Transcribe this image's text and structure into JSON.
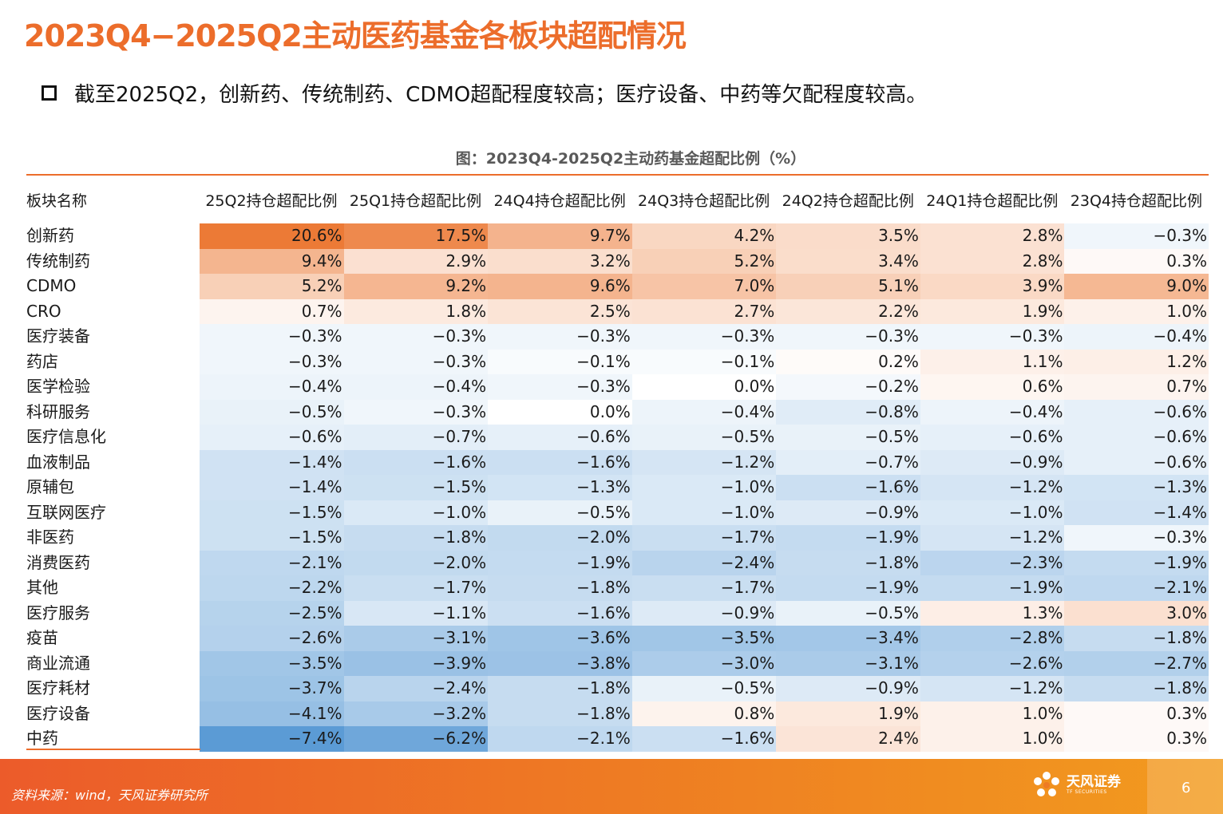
{
  "title": "2023Q4−2025Q2主动医药基金各板块超配情况",
  "bullet": "截至2025Q2，创新药、传统制药、CDMO超配程度较高；医疗设备、中药等欠配程度较高。",
  "table_caption": "图：2023Q4-2025Q2主动药基金超配比例（%）",
  "table": {
    "name_header": "板块名称",
    "headers": [
      "25Q2持仓超配比例",
      "25Q1持仓超配比例",
      "24Q4持仓超配比例",
      "24Q3持仓超配比例",
      "24Q2持仓超配比例",
      "24Q1持仓超配比例",
      "23Q4持仓超配比例"
    ],
    "rows": [
      {
        "name": "创新药",
        "values": [
          "20.6%",
          "17.5%",
          "9.7%",
          "4.2%",
          "3.5%",
          "2.8%",
          "−0.3%"
        ]
      },
      {
        "name": "传统制药",
        "values": [
          "9.4%",
          "2.9%",
          "3.2%",
          "5.2%",
          "3.4%",
          "2.8%",
          "0.3%"
        ]
      },
      {
        "name": "CDMO",
        "values": [
          "5.2%",
          "9.2%",
          "9.6%",
          "7.0%",
          "5.1%",
          "3.9%",
          "9.0%"
        ]
      },
      {
        "name": "CRO",
        "values": [
          "0.7%",
          "1.8%",
          "2.5%",
          "2.7%",
          "2.2%",
          "1.9%",
          "1.0%"
        ]
      },
      {
        "name": "医疗装备",
        "values": [
          "−0.3%",
          "−0.3%",
          "−0.3%",
          "−0.3%",
          "−0.3%",
          "−0.3%",
          "−0.4%"
        ]
      },
      {
        "name": "药店",
        "values": [
          "−0.3%",
          "−0.3%",
          "−0.1%",
          "−0.1%",
          "0.2%",
          "1.1%",
          "1.2%"
        ]
      },
      {
        "name": "医学检验",
        "values": [
          "−0.4%",
          "−0.4%",
          "−0.3%",
          "0.0%",
          "−0.2%",
          "0.6%",
          "0.7%"
        ]
      },
      {
        "name": "科研服务",
        "values": [
          "−0.5%",
          "−0.3%",
          "0.0%",
          "−0.4%",
          "−0.8%",
          "−0.4%",
          "−0.6%"
        ]
      },
      {
        "name": "医疗信息化",
        "values": [
          "−0.6%",
          "−0.7%",
          "−0.6%",
          "−0.5%",
          "−0.5%",
          "−0.6%",
          "−0.6%"
        ]
      },
      {
        "name": "血液制品",
        "values": [
          "−1.4%",
          "−1.6%",
          "−1.6%",
          "−1.2%",
          "−0.7%",
          "−0.9%",
          "−0.6%"
        ]
      },
      {
        "name": "原辅包",
        "values": [
          "−1.4%",
          "−1.5%",
          "−1.3%",
          "−1.0%",
          "−1.6%",
          "−1.2%",
          "−1.3%"
        ]
      },
      {
        "name": "互联网医疗",
        "values": [
          "−1.5%",
          "−1.0%",
          "−0.5%",
          "−1.0%",
          "−0.9%",
          "−1.0%",
          "−1.4%"
        ]
      },
      {
        "name": "非医药",
        "values": [
          "−1.5%",
          "−1.8%",
          "−2.0%",
          "−1.7%",
          "−1.9%",
          "−1.2%",
          "−0.3%"
        ]
      },
      {
        "name": "消费医药",
        "values": [
          "−2.1%",
          "−2.0%",
          "−1.9%",
          "−2.4%",
          "−1.8%",
          "−2.3%",
          "−1.9%"
        ]
      },
      {
        "name": "其他",
        "values": [
          "−2.2%",
          "−1.7%",
          "−1.8%",
          "−1.7%",
          "−1.9%",
          "−1.9%",
          "−2.1%"
        ]
      },
      {
        "name": "医疗服务",
        "values": [
          "−2.5%",
          "−1.1%",
          "−1.6%",
          "−0.9%",
          "−0.5%",
          "1.3%",
          "3.0%"
        ]
      },
      {
        "name": "疫苗",
        "values": [
          "−2.6%",
          "−3.1%",
          "−3.6%",
          "−3.5%",
          "−3.4%",
          "−2.8%",
          "−1.8%"
        ]
      },
      {
        "name": "商业流通",
        "values": [
          "−3.5%",
          "−3.9%",
          "−3.8%",
          "−3.0%",
          "−3.1%",
          "−2.6%",
          "−2.7%"
        ]
      },
      {
        "name": "医疗耗材",
        "values": [
          "−3.7%",
          "−2.4%",
          "−1.8%",
          "−0.5%",
          "−0.9%",
          "−1.2%",
          "−1.8%"
        ]
      },
      {
        "name": "医疗设备",
        "values": [
          "−4.1%",
          "−3.2%",
          "−1.8%",
          "0.8%",
          "1.9%",
          "1.0%",
          "0.3%"
        ]
      },
      {
        "name": "中药",
        "values": [
          "−7.4%",
          "−6.2%",
          "−2.1%",
          "−1.6%",
          "2.4%",
          "1.0%",
          "0.3%"
        ]
      }
    ]
  },
  "colors": {
    "accent": "#ec6d2b",
    "positive_max": "#ec7a36",
    "negative_max": "#5b9bd5"
  },
  "footer": {
    "source": "资料来源：wind，天风证券研究所",
    "logo_cn": "天风证券",
    "logo_en": "TF SECURITIES",
    "page_number": "6"
  }
}
